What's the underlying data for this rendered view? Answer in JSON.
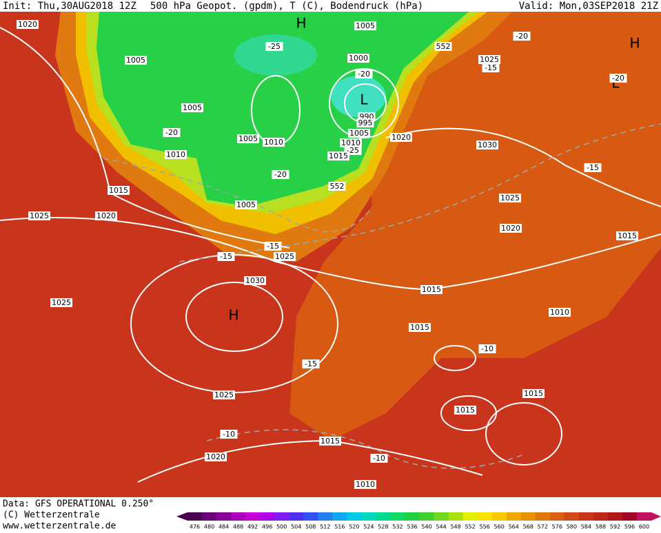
{
  "header": {
    "init": "Init: Thu,30AUG2018 12Z",
    "product": "500 hPa Geopot. (gpdm), T (C), Bodendruck (hPa)",
    "valid": "Valid: Mon,03SEP2018 21Z"
  },
  "map": {
    "labels": [
      "1020",
      "H",
      "1005",
      "1005",
      "-25",
      "552",
      "1000",
      "-20",
      "L",
      "1025",
      "-15",
      "-20",
      "H",
      "L",
      "-20",
      "1005",
      "990",
      "995",
      "1005",
      "1010",
      "1005",
      "1010",
      "-25",
      "1015",
      "-20",
      "1010",
      "1020",
      "1030",
      "-15",
      "-20",
      "552",
      "1015",
      "1005",
      "1025",
      "1020",
      "1025",
      "1020",
      "1015",
      "-15",
      "-15",
      "1025",
      "1030",
      "1015",
      "1025",
      "H",
      "1010",
      "1015",
      "-10",
      "-15",
      "1025",
      "1015",
      "1015",
      "-10",
      "1015",
      "1020",
      "-10",
      "1010"
    ]
  },
  "footer": {
    "data": "Data: GFS OPERATIONAL 0.250°",
    "copyright": "(C) Wetterzentrale",
    "url": "www.wetterzentrale.de"
  },
  "colorbar": {
    "ticks": [
      476,
      480,
      484,
      488,
      492,
      496,
      500,
      504,
      508,
      512,
      516,
      520,
      524,
      528,
      532,
      536,
      540,
      544,
      548,
      552,
      556,
      560,
      564,
      568,
      572,
      576,
      580,
      584,
      588,
      592,
      596,
      600
    ],
    "colors": [
      "#4a0050",
      "#6a0078",
      "#8a0098",
      "#a800b8",
      "#c800d8",
      "#b000e8",
      "#8020f0",
      "#5030f0",
      "#3050f0",
      "#2080f0",
      "#10a8f0",
      "#00c8e8",
      "#00d8c0",
      "#00d890",
      "#10d860",
      "#20d040",
      "#40d030",
      "#70d820",
      "#a8e010",
      "#e0f000",
      "#f8e000",
      "#f8c800",
      "#f0a800",
      "#e89000",
      "#e07808",
      "#d86010",
      "#d04818",
      "#c83818",
      "#c02818",
      "#b01818",
      "#a00828",
      "#c01060"
    ]
  }
}
